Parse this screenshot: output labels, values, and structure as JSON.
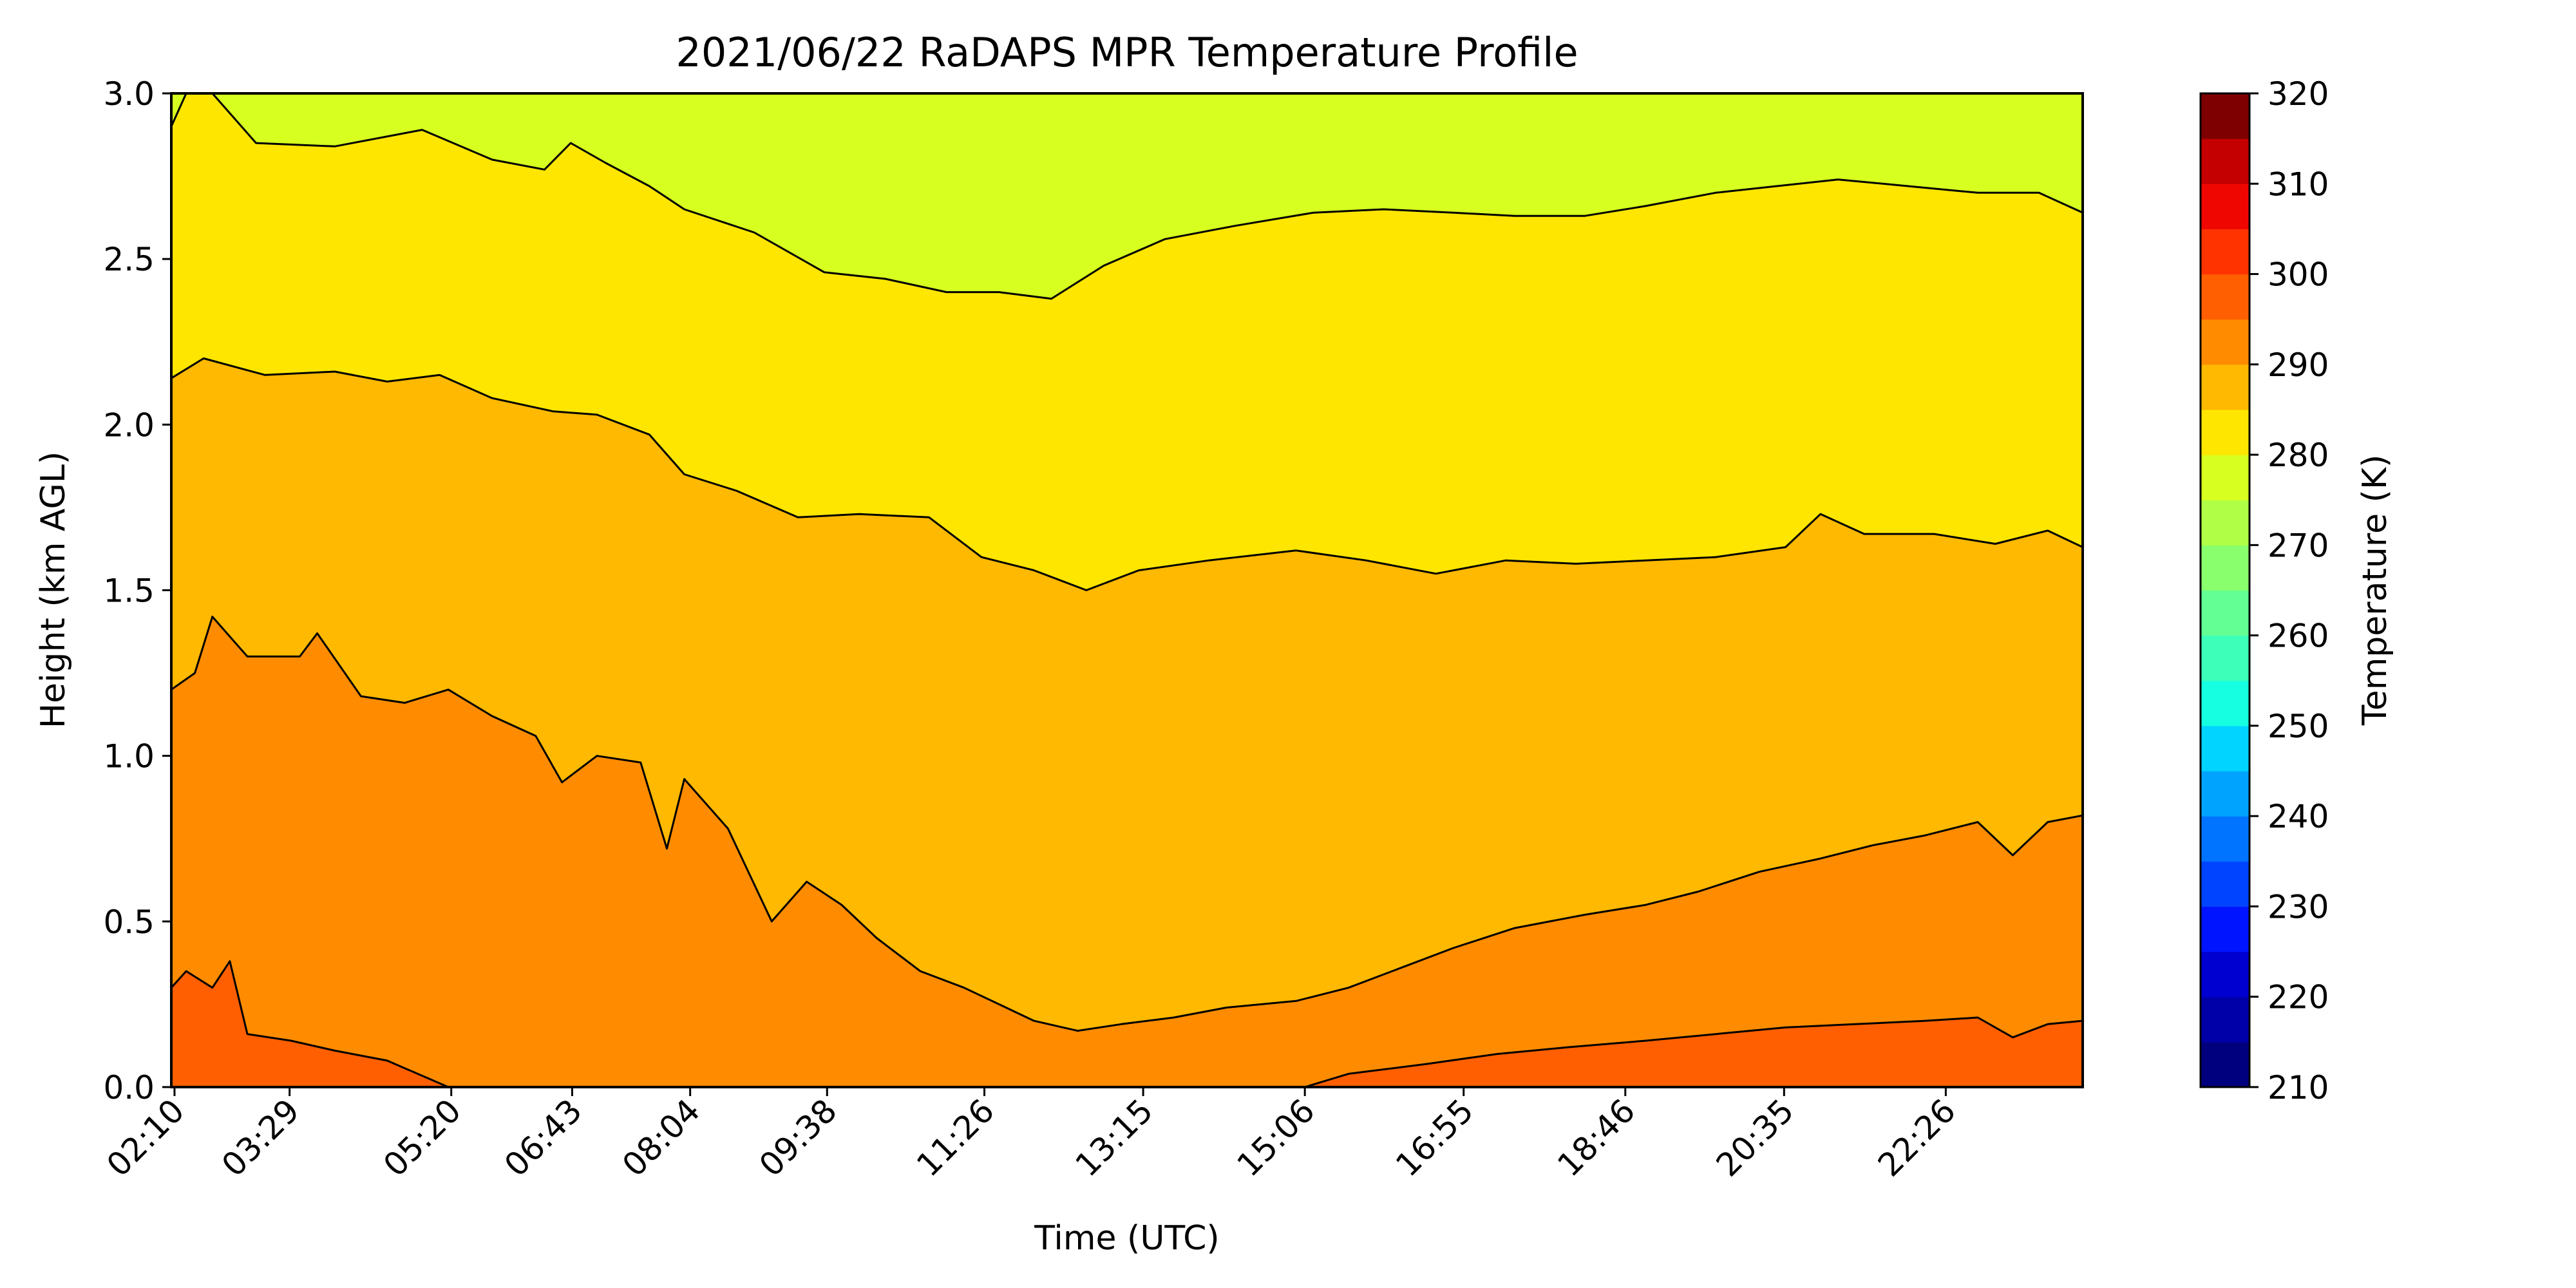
{
  "chart_data": {
    "type": "heatmap",
    "title": "2021/06/22 RaDAPS MPR Temperature Profile",
    "xlabel": "Time (UTC)",
    "ylabel": "Height (km AGL)",
    "x_ticks": [
      "02:10",
      "03:29",
      "05:20",
      "06:43",
      "08:04",
      "09:38",
      "11:26",
      "13:15",
      "15:06",
      "16:55",
      "18:46",
      "20:35",
      "22:26"
    ],
    "x_tick_hours": [
      2.1667,
      3.4833,
      5.3333,
      6.7167,
      8.0667,
      9.6333,
      11.4333,
      13.25,
      15.1,
      16.9167,
      18.7667,
      20.5833,
      22.4333
    ],
    "xlim_hours": [
      2.13,
      24.0
    ],
    "ylim": [
      0,
      3.0
    ],
    "y_ticks": [
      "0.0",
      "0.5",
      "1.0",
      "1.5",
      "2.0",
      "2.5",
      "3.0"
    ],
    "grid": false,
    "colorbar": {
      "label": "Temperature (K)",
      "range": [
        210,
        320
      ],
      "step": 5,
      "tick_labels": [
        "210",
        "220",
        "230",
        "240",
        "250",
        "260",
        "270",
        "280",
        "290",
        "300",
        "310",
        "320"
      ],
      "colors": [
        "#00007f",
        "#0000a8",
        "#0000d1",
        "#0014ff",
        "#0044ff",
        "#0074ff",
        "#00a4ff",
        "#00d4ff",
        "#16ffe1",
        "#3dffba",
        "#63ff94",
        "#8aff6d",
        "#b0ff46",
        "#d7ff1f",
        "#fee600",
        "#ffb900",
        "#ff8c00",
        "#ff5f00",
        "#ff3300",
        "#f00600",
        "#c40000",
        "#7f0000"
      ]
    },
    "filled_bands": [
      {
        "temp_range": [
          275,
          280
        ],
        "color": "#d7ff1f"
      },
      {
        "temp_range": [
          280,
          285
        ],
        "color": "#fee600"
      },
      {
        "temp_range": [
          285,
          290
        ],
        "color": "#ffb900"
      },
      {
        "temp_range": [
          290,
          295
        ],
        "color": "#ff8c00"
      },
      {
        "temp_range": [
          295,
          300
        ],
        "color": "#ff5f00"
      }
    ],
    "contours": [
      {
        "level_K": 280,
        "height_km": [
          [
            2.13,
            2.9
          ],
          [
            2.3,
            3.0
          ],
          [
            2.6,
            3.0
          ],
          [
            3.1,
            2.85
          ],
          [
            4.0,
            2.84
          ],
          [
            5.0,
            2.89
          ],
          [
            5.8,
            2.8
          ],
          [
            6.4,
            2.77
          ],
          [
            6.7,
            2.85
          ],
          [
            7.1,
            2.79
          ],
          [
            7.6,
            2.72
          ],
          [
            8.0,
            2.65
          ],
          [
            8.8,
            2.58
          ],
          [
            9.6,
            2.46
          ],
          [
            10.3,
            2.44
          ],
          [
            11.0,
            2.4
          ],
          [
            11.6,
            2.4
          ],
          [
            12.2,
            2.38
          ],
          [
            12.8,
            2.48
          ],
          [
            13.5,
            2.56
          ],
          [
            14.3,
            2.6
          ],
          [
            15.2,
            2.64
          ],
          [
            16.0,
            2.65
          ],
          [
            16.8,
            2.64
          ],
          [
            17.5,
            2.63
          ],
          [
            18.3,
            2.63
          ],
          [
            19.0,
            2.66
          ],
          [
            19.8,
            2.7
          ],
          [
            20.5,
            2.72
          ],
          [
            21.2,
            2.74
          ],
          [
            22.0,
            2.72
          ],
          [
            22.8,
            2.7
          ],
          [
            23.5,
            2.7
          ],
          [
            24.0,
            2.64
          ]
        ]
      },
      {
        "level_K": 285,
        "height_km": [
          [
            2.13,
            2.14
          ],
          [
            2.5,
            2.2
          ],
          [
            3.2,
            2.15
          ],
          [
            4.0,
            2.16
          ],
          [
            4.6,
            2.13
          ],
          [
            5.2,
            2.15
          ],
          [
            5.8,
            2.08
          ],
          [
            6.5,
            2.04
          ],
          [
            7.0,
            2.03
          ],
          [
            7.6,
            1.97
          ],
          [
            8.0,
            1.85
          ],
          [
            8.6,
            1.8
          ],
          [
            9.3,
            1.72
          ],
          [
            10.0,
            1.73
          ],
          [
            10.8,
            1.72
          ],
          [
            11.4,
            1.6
          ],
          [
            12.0,
            1.56
          ],
          [
            12.6,
            1.5
          ],
          [
            13.2,
            1.56
          ],
          [
            14.0,
            1.59
          ],
          [
            15.0,
            1.62
          ],
          [
            15.8,
            1.59
          ],
          [
            16.6,
            1.55
          ],
          [
            17.4,
            1.59
          ],
          [
            18.2,
            1.58
          ],
          [
            19.0,
            1.59
          ],
          [
            19.8,
            1.6
          ],
          [
            20.6,
            1.63
          ],
          [
            21.0,
            1.73
          ],
          [
            21.5,
            1.67
          ],
          [
            22.3,
            1.67
          ],
          [
            23.0,
            1.64
          ],
          [
            23.6,
            1.68
          ],
          [
            24.0,
            1.63
          ]
        ]
      },
      {
        "level_K": 290,
        "height_km": [
          [
            2.13,
            1.2
          ],
          [
            2.4,
            1.25
          ],
          [
            2.6,
            1.42
          ],
          [
            3.0,
            1.3
          ],
          [
            3.6,
            1.3
          ],
          [
            3.8,
            1.37
          ],
          [
            4.3,
            1.18
          ],
          [
            4.8,
            1.16
          ],
          [
            5.3,
            1.2
          ],
          [
            5.8,
            1.12
          ],
          [
            6.3,
            1.06
          ],
          [
            6.6,
            0.92
          ],
          [
            7.0,
            1.0
          ],
          [
            7.5,
            0.98
          ],
          [
            7.8,
            0.72
          ],
          [
            8.0,
            0.93
          ],
          [
            8.5,
            0.78
          ],
          [
            9.0,
            0.5
          ],
          [
            9.4,
            0.62
          ],
          [
            9.8,
            0.55
          ],
          [
            10.2,
            0.45
          ],
          [
            10.7,
            0.35
          ],
          [
            11.2,
            0.3
          ],
          [
            11.6,
            0.25
          ],
          [
            12.0,
            0.2
          ],
          [
            12.5,
            0.17
          ],
          [
            13.0,
            0.19
          ],
          [
            13.6,
            0.21
          ],
          [
            14.2,
            0.24
          ],
          [
            15.0,
            0.26
          ],
          [
            15.6,
            0.3
          ],
          [
            16.2,
            0.36
          ],
          [
            16.8,
            0.42
          ],
          [
            17.5,
            0.48
          ],
          [
            18.3,
            0.52
          ],
          [
            19.0,
            0.55
          ],
          [
            19.6,
            0.59
          ],
          [
            20.3,
            0.65
          ],
          [
            21.0,
            0.69
          ],
          [
            21.6,
            0.73
          ],
          [
            22.2,
            0.76
          ],
          [
            22.8,
            0.8
          ],
          [
            23.2,
            0.7
          ],
          [
            23.6,
            0.8
          ],
          [
            24.0,
            0.82
          ]
        ]
      },
      {
        "level_K": 295,
        "height_km": [
          [
            2.13,
            0.3
          ],
          [
            2.3,
            0.35
          ],
          [
            2.6,
            0.3
          ],
          [
            2.8,
            0.38
          ],
          [
            3.0,
            0.16
          ],
          [
            3.5,
            0.14
          ],
          [
            4.0,
            0.11
          ],
          [
            4.6,
            0.08
          ],
          [
            5.3,
            0.0
          ],
          [
            15.1,
            0.0
          ],
          [
            15.6,
            0.04
          ],
          [
            16.5,
            0.07
          ],
          [
            17.3,
            0.1
          ],
          [
            18.1,
            0.12
          ],
          [
            19.0,
            0.14
          ],
          [
            19.8,
            0.16
          ],
          [
            20.6,
            0.18
          ],
          [
            21.4,
            0.19
          ],
          [
            22.2,
            0.2
          ],
          [
            22.8,
            0.21
          ],
          [
            23.2,
            0.15
          ],
          [
            23.6,
            0.19
          ],
          [
            24.0,
            0.2
          ]
        ]
      }
    ]
  }
}
